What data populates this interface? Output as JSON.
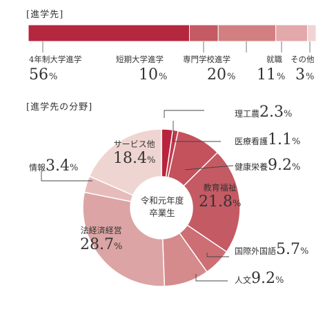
{
  "chart_data": [
    {
      "type": "bar",
      "title": "[進学先]",
      "stacked": true,
      "unit": "%",
      "categories": [
        "4年制大学進学",
        "短期大学進学",
        "専門学校進学",
        "就職",
        "その他"
      ],
      "values": [
        56,
        10,
        20,
        11,
        3
      ],
      "colors": [
        "#b5263f",
        "#c45a63",
        "#d27f82",
        "#e3a8aa",
        "#f1d3d3"
      ]
    },
    {
      "type": "pie",
      "title": "[進学先の分野]",
      "center_label": [
        "令和元年度",
        "卒業生"
      ],
      "unit": "%",
      "categories": [
        "理工農",
        "医療看護",
        "健康栄養",
        "教育福祉",
        "国際外国語",
        "人文",
        "法経済経営",
        "情報",
        "サービス他"
      ],
      "values": [
        2.3,
        1.1,
        9.2,
        21.8,
        5.7,
        9.2,
        28.7,
        3.4,
        18.4
      ],
      "colors": [
        "#b8243c",
        "#c23a4d",
        "#c4525c",
        "#c45a63",
        "#cd6e74",
        "#d58a8c",
        "#dca4a4",
        "#e6bcbb",
        "#efd5d2"
      ]
    }
  ]
}
